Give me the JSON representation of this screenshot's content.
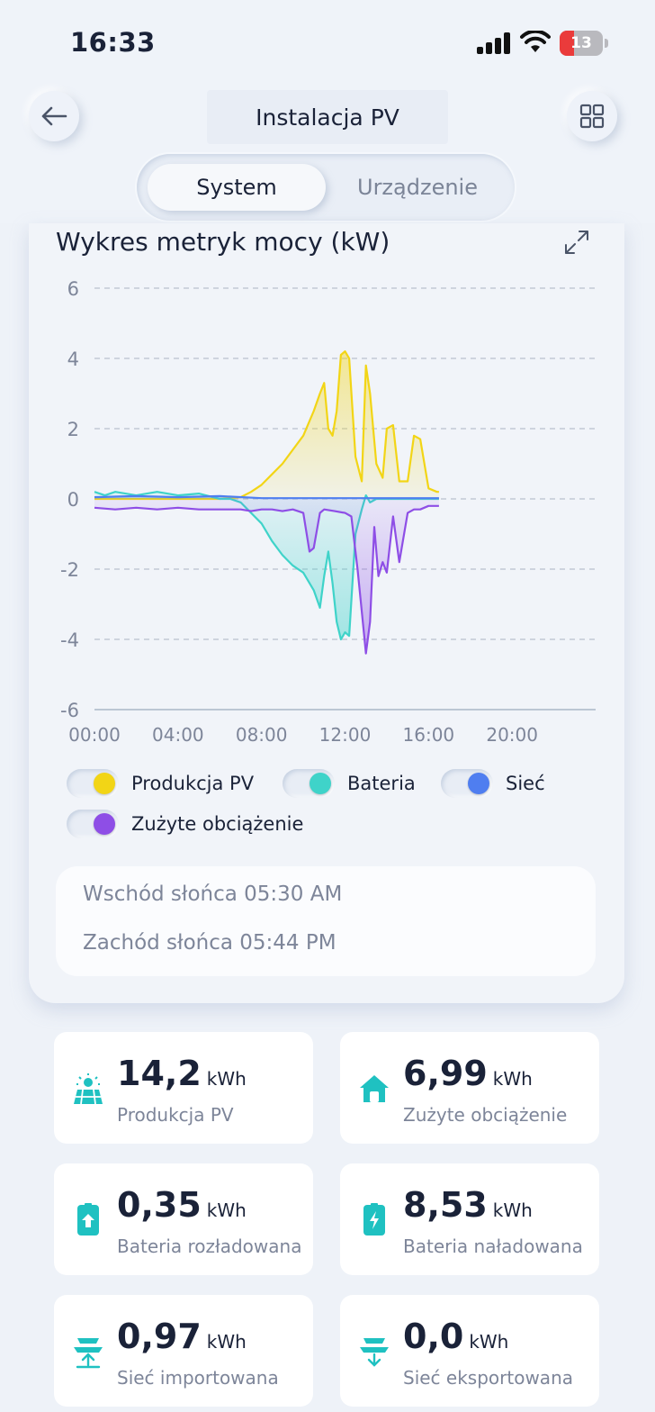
{
  "status_bar": {
    "time": "16:33",
    "battery_level": "13"
  },
  "header": {
    "title": "Instalacja PV"
  },
  "tabs": [
    {
      "label": "System",
      "active": true
    },
    {
      "label": "Urządzenie",
      "active": false
    }
  ],
  "chart": {
    "title": "Wykres metryk mocy (kW)",
    "y_ticks": [
      "6",
      "4",
      "2",
      "0",
      "-2",
      "-4",
      "-6"
    ],
    "x_ticks": [
      "00:00",
      "04:00",
      "08:00",
      "12:00",
      "16:00",
      "20:00"
    ],
    "legend": [
      {
        "label": "Produkcja PV",
        "color": "#f2d516"
      },
      {
        "label": "Bateria",
        "color": "#3fd3c9"
      },
      {
        "label": "Sieć",
        "color": "#4f7ef0"
      },
      {
        "label": "Zużyte obciążenie",
        "color": "#8e4ee6"
      }
    ]
  },
  "sun": {
    "sunrise": "Wschód słońca 05:30 AM",
    "sunset": "Zachód słońca 05:44 PM"
  },
  "tiles": [
    {
      "value": "14,2",
      "unit": "kWh",
      "label": "Produkcja PV",
      "icon": "solar-panel-icon"
    },
    {
      "value": "6,99",
      "unit": "kWh",
      "label": "Zużyte obciążenie",
      "icon": "house-icon"
    },
    {
      "value": "0,35",
      "unit": "kWh",
      "label": "Bateria rozładowana",
      "icon": "battery-discharge-icon"
    },
    {
      "value": "8,53",
      "unit": "kWh",
      "label": "Bateria naładowana",
      "icon": "battery-charge-icon"
    },
    {
      "value": "0,97",
      "unit": "kWh",
      "label": "Sieć importowana",
      "icon": "grid-import-icon"
    },
    {
      "value": "0,0",
      "unit": "kWh",
      "label": "Sieć eksportowana",
      "icon": "grid-export-icon"
    }
  ],
  "chart_data": {
    "type": "area",
    "ylim": [
      -6,
      6
    ],
    "xlim": [
      0,
      24
    ],
    "grid": true,
    "legend_position": "bottom",
    "series": [
      {
        "name": "Produkcja PV",
        "color": "#f2d516",
        "x": [
          0,
          5,
          6,
          7,
          7.5,
          8,
          8.5,
          9,
          9.5,
          10,
          10.5,
          10.8,
          11,
          11.2,
          11.4,
          11.6,
          11.8,
          12,
          12.2,
          12.5,
          12.8,
          13,
          13.2,
          13.5,
          13.8,
          14,
          14.3,
          14.6,
          15,
          15.3,
          15.6,
          16,
          16.4,
          16.5
        ],
        "values": [
          0,
          0,
          0,
          0.05,
          0.2,
          0.4,
          0.7,
          1.0,
          1.4,
          1.8,
          2.5,
          3.0,
          3.3,
          2.0,
          1.8,
          2.5,
          4.1,
          4.2,
          4.0,
          1.2,
          0.5,
          3.8,
          3.0,
          1.0,
          0.6,
          2.0,
          2.1,
          0.5,
          0.5,
          1.8,
          1.7,
          0.3,
          0.2,
          0.2
        ]
      },
      {
        "name": "Bateria",
        "color": "#3fd3c9",
        "x": [
          0,
          0.5,
          1,
          2,
          3,
          4,
          5,
          6,
          6.5,
          7,
          7.5,
          8,
          8.5,
          9,
          9.5,
          10,
          10.5,
          10.8,
          11,
          11.2,
          11.4,
          11.6,
          11.8,
          12,
          12.2,
          12.5,
          12.8,
          13,
          13.2,
          13.5,
          14,
          15,
          16,
          16.5
        ],
        "values": [
          0.2,
          0.1,
          0.2,
          0.1,
          0.2,
          0.1,
          0.15,
          0,
          0,
          -0.1,
          -0.4,
          -0.7,
          -1.2,
          -1.6,
          -1.9,
          -2.1,
          -2.6,
          -3.1,
          -2.2,
          -1.5,
          -2.4,
          -3.5,
          -4.0,
          -3.8,
          -3.9,
          -1.0,
          -0.3,
          0.1,
          -0.1,
          0,
          0,
          0,
          0,
          0
        ]
      },
      {
        "name": "Sieć",
        "color": "#4f7ef0",
        "x": [
          0,
          2,
          4,
          6,
          8,
          10,
          12,
          14,
          16,
          16.5
        ],
        "values": [
          0.05,
          0.08,
          0.05,
          0.08,
          0.02,
          0.02,
          0.02,
          0.02,
          0.02,
          0.02
        ]
      },
      {
        "name": "Zużyte obciążenie",
        "color": "#8e4ee6",
        "x": [
          0,
          1,
          2,
          3,
          4,
          5,
          6,
          7,
          7.5,
          8,
          8.5,
          9,
          9.5,
          10,
          10.3,
          10.5,
          10.8,
          11,
          11.5,
          12,
          12.3,
          12.6,
          12.9,
          13,
          13.2,
          13.4,
          13.6,
          13.8,
          14,
          14.3,
          14.6,
          15,
          15.3,
          15.6,
          16,
          16.5
        ],
        "values": [
          -0.25,
          -0.3,
          -0.25,
          -0.3,
          -0.25,
          -0.3,
          -0.3,
          -0.3,
          -0.35,
          -0.3,
          -0.3,
          -0.35,
          -0.3,
          -0.4,
          -1.5,
          -1.4,
          -0.4,
          -0.3,
          -0.35,
          -0.4,
          -0.5,
          -2.0,
          -3.8,
          -4.4,
          -3.5,
          -0.8,
          -2.2,
          -1.8,
          -2.1,
          -0.5,
          -1.8,
          -0.4,
          -0.3,
          -0.3,
          -0.2,
          -0.2
        ]
      }
    ]
  }
}
